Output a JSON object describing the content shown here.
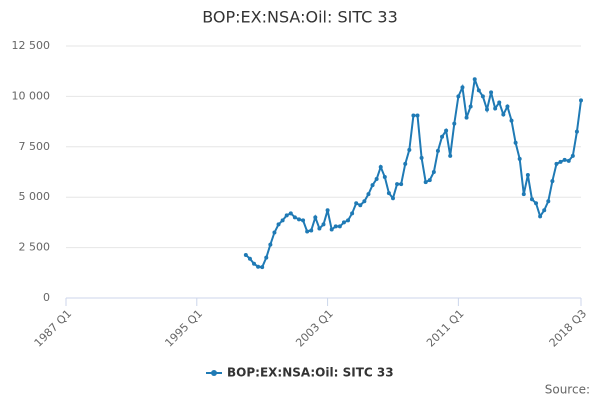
{
  "chart_data": {
    "type": "line",
    "title": "BOP:EX:NSA:Oil: SITC 33",
    "source": "Source:",
    "xlim": [
      "1987 Q1",
      "2018 Q3"
    ],
    "xticks": [
      "1987 Q1",
      "1995 Q1",
      "2003 Q1",
      "2011 Q1",
      "2018 Q3"
    ],
    "ylim": [
      0,
      12500
    ],
    "yticks": [
      0,
      {
        "value": 2500,
        "label": "2 500"
      },
      {
        "value": 5000,
        "label": "5 000"
      },
      {
        "value": 7500,
        "label": "7 500"
      },
      {
        "value": 10000,
        "label": "10 000"
      },
      {
        "value": 12500,
        "label": "12 500"
      }
    ],
    "grid": true,
    "legend": "bottom",
    "x": [
      "1998 Q1",
      "1998 Q2",
      "1998 Q3",
      "1998 Q4",
      "1999 Q1",
      "1999 Q2",
      "1999 Q3",
      "1999 Q4",
      "2000 Q1",
      "2000 Q2",
      "2000 Q3",
      "2000 Q4",
      "2001 Q1",
      "2001 Q2",
      "2001 Q3",
      "2001 Q4",
      "2002 Q1",
      "2002 Q2",
      "2002 Q3",
      "2002 Q4",
      "2003 Q1",
      "2003 Q2",
      "2003 Q3",
      "2003 Q4",
      "2004 Q1",
      "2004 Q2",
      "2004 Q3",
      "2004 Q4",
      "2005 Q1",
      "2005 Q2",
      "2005 Q3",
      "2005 Q4",
      "2006 Q1",
      "2006 Q2",
      "2006 Q3",
      "2006 Q4",
      "2007 Q1",
      "2007 Q2",
      "2007 Q3",
      "2007 Q4",
      "2008 Q1",
      "2008 Q2",
      "2008 Q3",
      "2008 Q4",
      "2009 Q1",
      "2009 Q2",
      "2009 Q3",
      "2009 Q4",
      "2010 Q1",
      "2010 Q2",
      "2010 Q3",
      "2010 Q4",
      "2011 Q1",
      "2011 Q2",
      "2011 Q3",
      "2011 Q4",
      "2012 Q1",
      "2012 Q2",
      "2012 Q3",
      "2012 Q4",
      "2013 Q1",
      "2013 Q2",
      "2013 Q3",
      "2013 Q4",
      "2014 Q1",
      "2014 Q2",
      "2014 Q3",
      "2014 Q4",
      "2015 Q1",
      "2015 Q2",
      "2015 Q3",
      "2015 Q4",
      "2016 Q1",
      "2016 Q2",
      "2016 Q3",
      "2016 Q4",
      "2017 Q1",
      "2017 Q2",
      "2017 Q3",
      "2017 Q4",
      "2018 Q1",
      "2018 Q2",
      "2018 Q3"
    ],
    "series": [
      {
        "name": "BOP:EX:NSA:Oil: SITC 33",
        "color": "#1f7ab5",
        "values": [
          2130,
          1950,
          1700,
          1550,
          1530,
          2000,
          2650,
          3250,
          3650,
          3850,
          4100,
          4200,
          4000,
          3900,
          3850,
          3300,
          3350,
          4000,
          3450,
          3650,
          4350,
          3400,
          3550,
          3550,
          3750,
          3850,
          4200,
          4700,
          4600,
          4800,
          5150,
          5600,
          5900,
          6500,
          6000,
          5200,
          4950,
          5650,
          5650,
          6650,
          7350,
          9050,
          9050,
          6950,
          5750,
          5850,
          6250,
          7300,
          8000,
          8300,
          7050,
          8650,
          10000,
          10450,
          8950,
          9500,
          10850,
          10300,
          10000,
          9350,
          10200,
          9400,
          9700,
          9100,
          9500,
          8800,
          7700,
          6900,
          5150,
          6100,
          4900,
          4700,
          4050,
          4350,
          4800,
          5800,
          6650,
          6750,
          6850,
          6800,
          7050,
          8250,
          9800
        ]
      }
    ]
  }
}
